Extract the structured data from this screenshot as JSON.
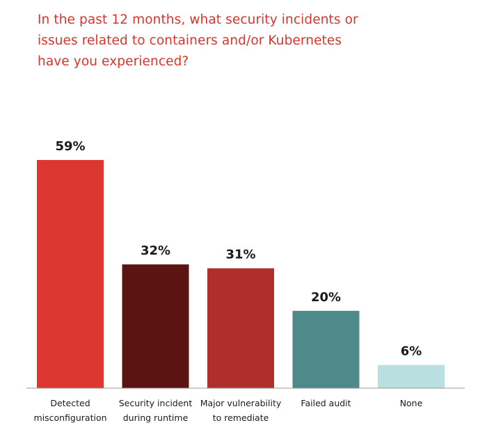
{
  "title_lines": [
    "In the past 12 months, what security incidents or",
    "issues related to containers and/or Kubernetes",
    "have you experienced?"
  ],
  "chart_data": {
    "type": "bar",
    "title": "In the past 12 months, what security incidents or issues related to containers and/or Kubernetes have you experienced?",
    "categories": [
      [
        "Detected",
        "misconfiguration"
      ],
      [
        "Security incident",
        "during runtime"
      ],
      [
        "Major vulnerability",
        "to remediate"
      ],
      [
        "Failed audit"
      ],
      [
        "None"
      ]
    ],
    "values": [
      59,
      32,
      31,
      20,
      6
    ],
    "value_labels": [
      "59%",
      "32%",
      "31%",
      "20%",
      "6%"
    ],
    "colors": [
      "#dc3831",
      "#5a1512",
      "#b02e2c",
      "#4f8a8b",
      "#b9dfe0"
    ],
    "ylim": [
      0,
      59
    ],
    "grid": false,
    "xlabel": "",
    "ylabel": ""
  }
}
